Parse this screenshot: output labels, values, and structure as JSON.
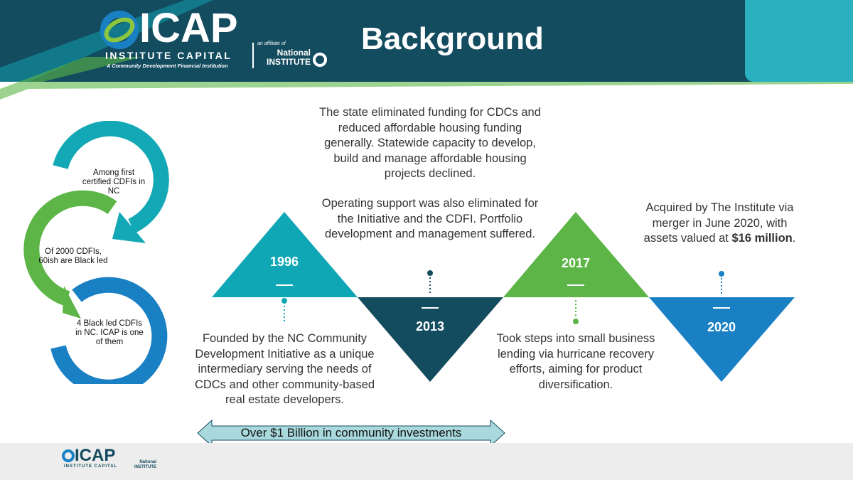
{
  "header": {
    "title": "Background",
    "logo": {
      "brand": "ICAP",
      "name": "INSTITUTE CAPITAL",
      "tagline": "A Community Development Financial Institution",
      "affiliate_prefix": "an affiliate of",
      "affiliate_name": "National INSTITUTE"
    }
  },
  "colors": {
    "header": "#134b5f",
    "teal": "#0fa7b5",
    "green": "#5cb546",
    "blue": "#1a80c4",
    "dark": "#134b5f"
  },
  "cycle": [
    {
      "text": "Among first certified CDFIs in NC",
      "color": "#12a8b5"
    },
    {
      "text": "Of 2000 CDFIs, 60ish are Black led",
      "color": "#5cb546"
    },
    {
      "text": "4 Black led CDFIs in NC.  ICAP is one of them",
      "color": "#1a80c4"
    }
  ],
  "timeline": [
    {
      "year": "1996",
      "text": "Founded by the NC Community Development Initiative as a unique intermediary serving the needs of CDCs and other community-based real estate developers."
    },
    {
      "year": "2013",
      "text": "The state eliminated funding for CDCs and reduced affordable housing funding generally. Statewide capacity to develop, build and manage affordable housing projects declined.",
      "text2": "Operating support was also eliminated for the Initiative and the CDFI. Portfolio development and management suffered."
    },
    {
      "year": "2017",
      "text": "Took steps into small business lending via hurricane recovery efforts, aiming for product diversification."
    },
    {
      "year": "2020",
      "text": "Acquired by The Institute via merger in June 2020, with assets valued at ",
      "bold": "$16 million",
      "end": "."
    }
  ],
  "banner": "Over $1 Billion in community investments",
  "footer": {
    "brand": "ICAP",
    "name": "INSTITUTE CAPITAL",
    "affiliate_name": "National INSTITUTE"
  }
}
